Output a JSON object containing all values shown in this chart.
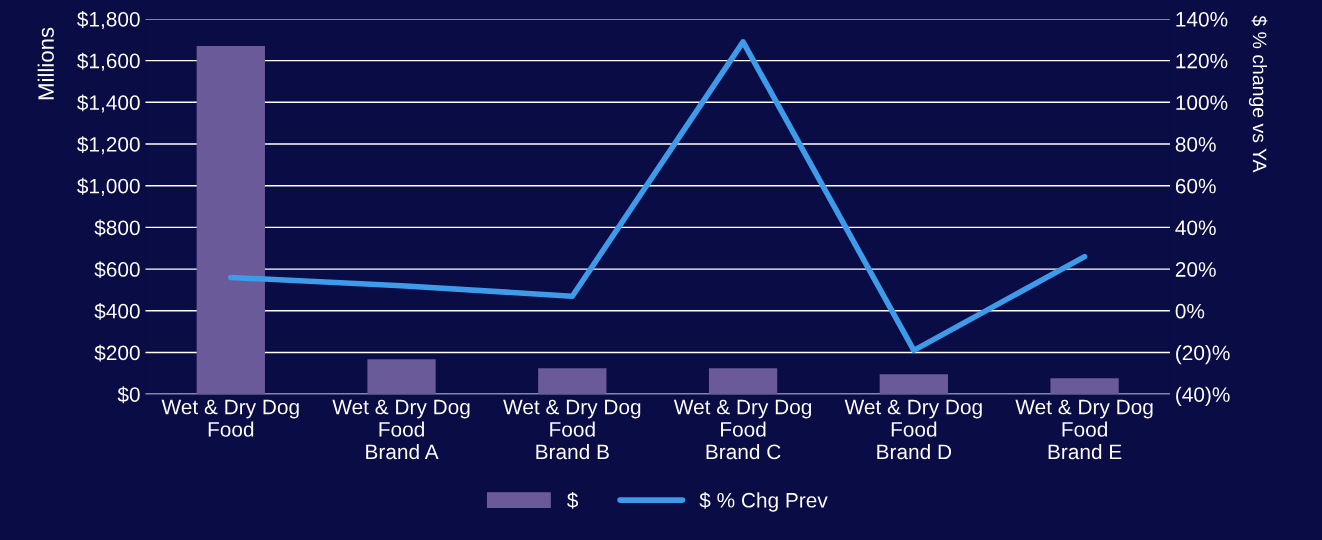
{
  "chart_data": {
    "type": "bar",
    "categories": [
      "Wet & Dry Dog\nFood",
      "Wet & Dry Dog\nFood\nBrand A",
      "Wet & Dry Dog\nFood\nBrand B",
      "Wet & Dry Dog\nFood\nBrand C",
      "Wet & Dry Dog\nFood\nBrand D",
      "Wet & Dry Dog\nFood\nBrand E"
    ],
    "series": [
      {
        "name": "$",
        "color": "#6a5a9a",
        "values": [
          1670,
          168,
          125,
          125,
          96,
          77
        ]
      },
      {
        "name": "$ % Chg Prev",
        "type": "line",
        "axis": "y2",
        "color": "#3d9be9",
        "marker": "none",
        "values": [
          16,
          12,
          7,
          129,
          -19,
          26
        ]
      }
    ],
    "ylabel": "Millions",
    "y2label": "$ % change vs YA",
    "ylim": [
      0,
      1800
    ],
    "yticks": [
      {
        "value": 0,
        "label": "$0"
      },
      {
        "value": 200,
        "label": "$200"
      },
      {
        "value": 400,
        "label": "$400"
      },
      {
        "value": 600,
        "label": "$600"
      },
      {
        "value": 800,
        "label": "$800"
      },
      {
        "value": 1000,
        "label": "$1,000"
      },
      {
        "value": 1200,
        "label": "$1,200"
      },
      {
        "value": 1400,
        "label": "$1,400"
      },
      {
        "value": 1600,
        "label": "$1,600"
      },
      {
        "value": 1800,
        "label": "$1,800"
      }
    ],
    "y2lim": [
      -40,
      140
    ],
    "y2ticks": [
      {
        "value": -40,
        "label": "(40)%"
      },
      {
        "value": -20,
        "label": "(20)%"
      },
      {
        "value": 0,
        "label": "0%"
      },
      {
        "value": 20,
        "label": "20%"
      },
      {
        "value": 40,
        "label": "40%"
      },
      {
        "value": 60,
        "label": "60%"
      },
      {
        "value": 80,
        "label": "80%"
      },
      {
        "value": 100,
        "label": "100%"
      },
      {
        "value": 120,
        "label": "120%"
      },
      {
        "value": 140,
        "label": "140%"
      }
    ],
    "grid": "y",
    "legend": "bottom"
  }
}
